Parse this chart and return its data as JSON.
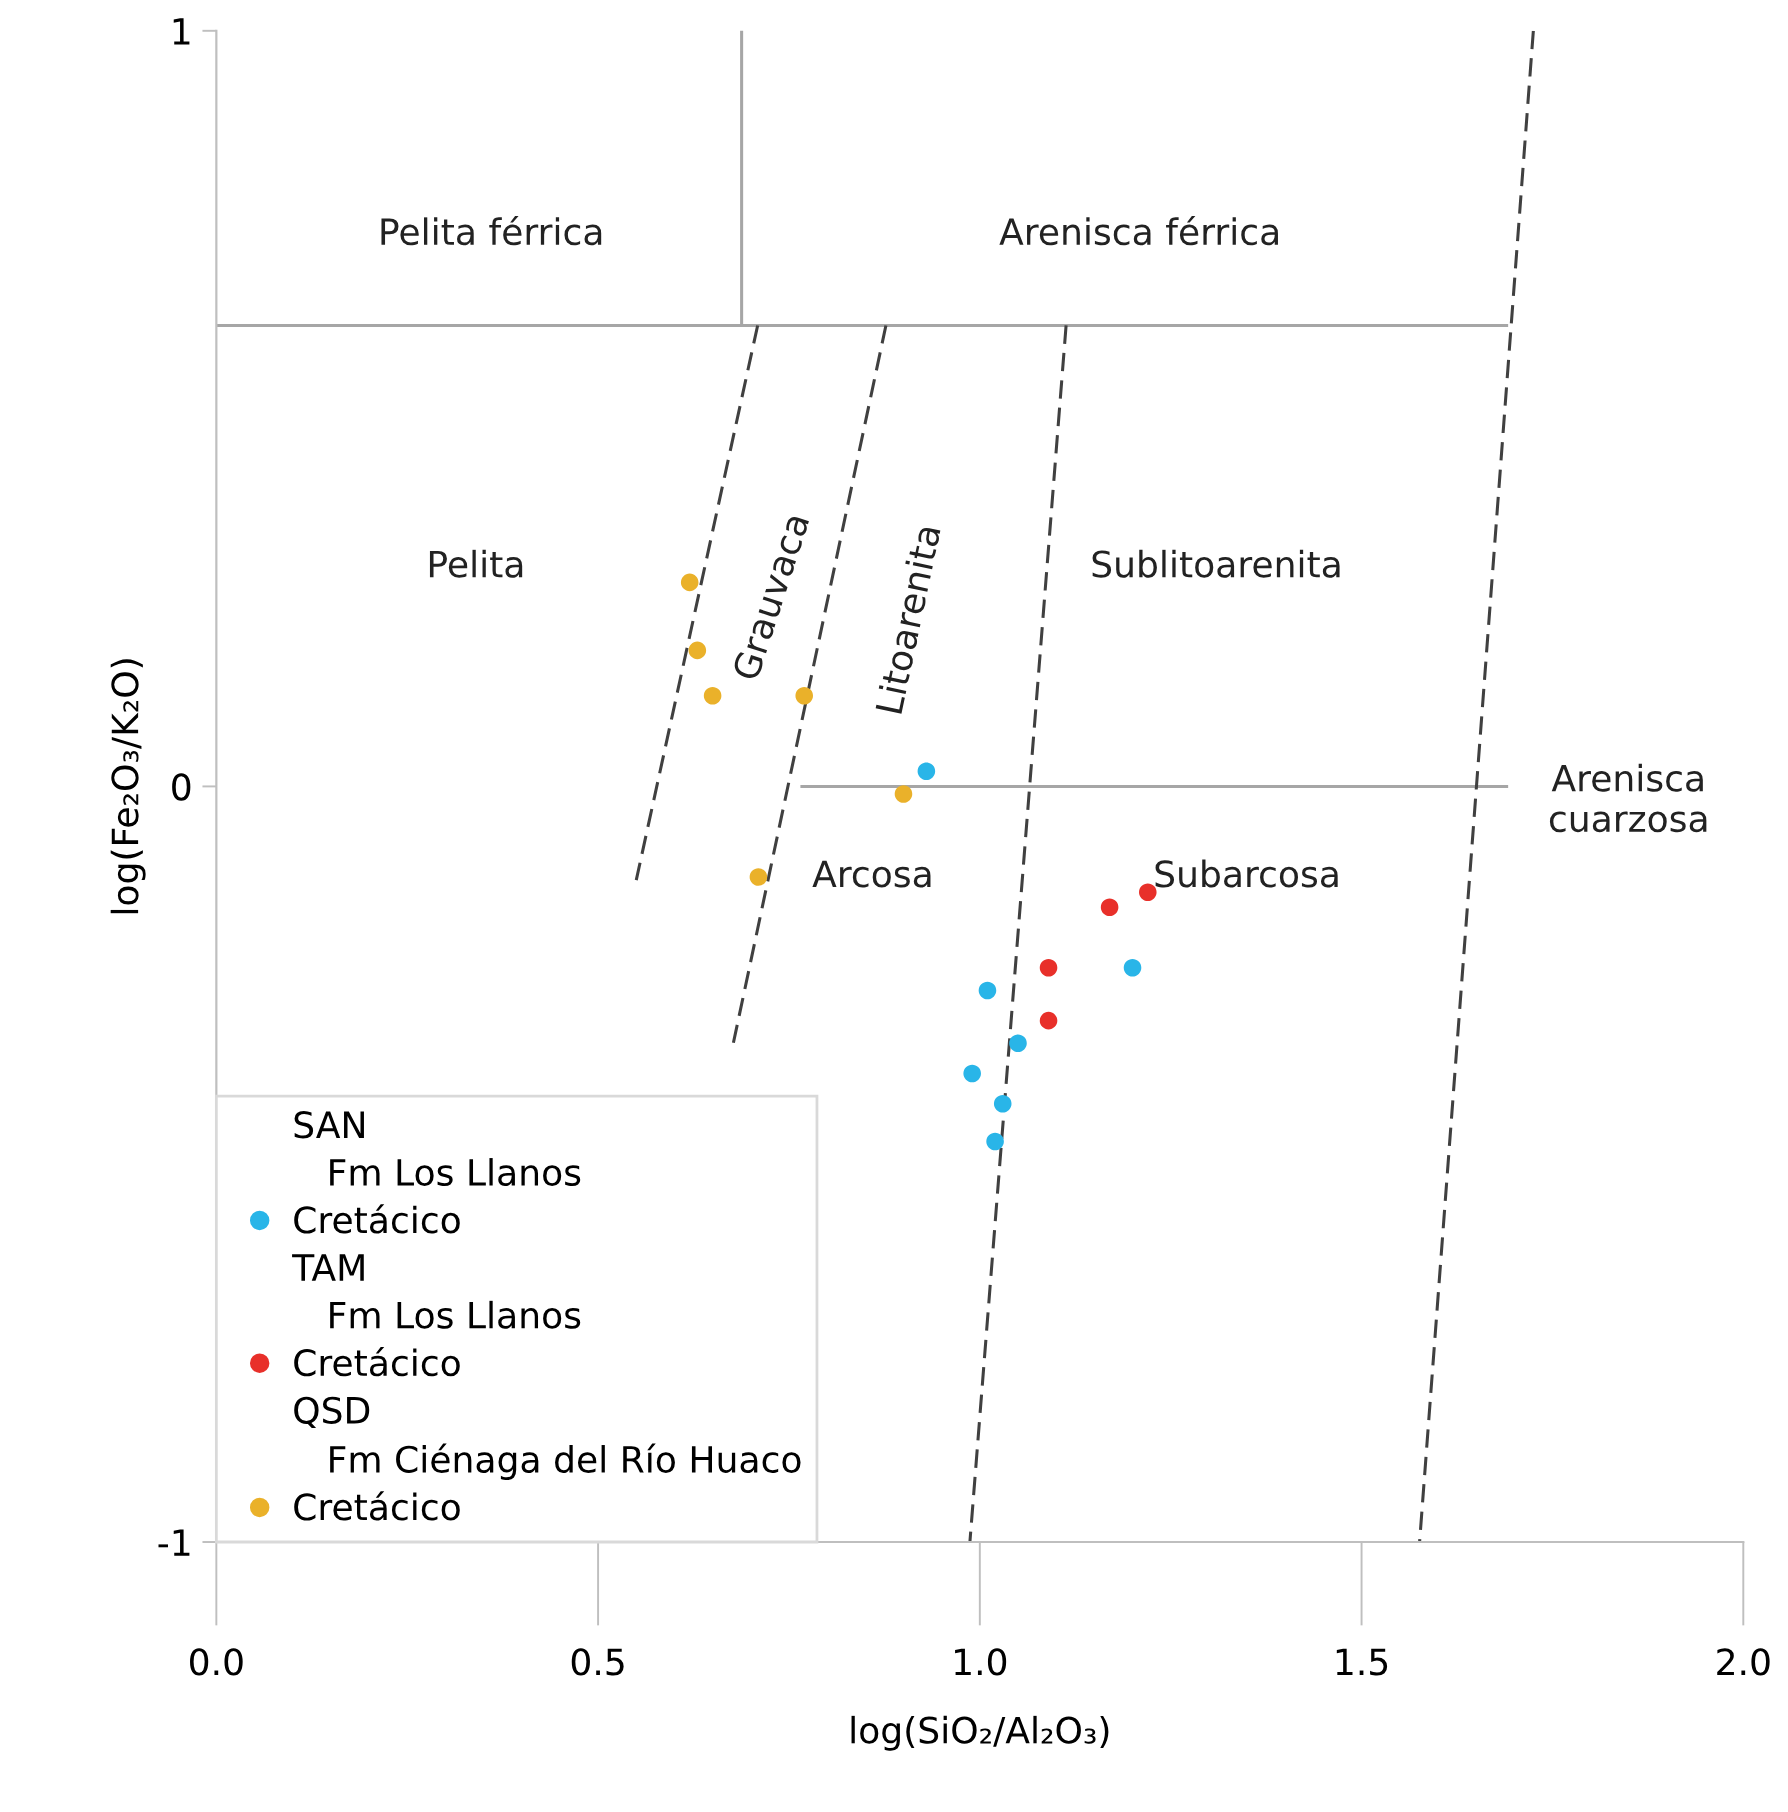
{
  "chart_data": {
    "type": "scatter",
    "xlabel": "log(SiO₂/Al₂O₃)",
    "ylabel": "log(Fe₂O₃/K₂O)",
    "xlim": [
      0,
      2
    ],
    "ylim": [
      -1,
      1
    ],
    "xticks": [
      {
        "value": 0,
        "label": "0.0"
      },
      {
        "value": 0.5,
        "label": "0.5"
      },
      {
        "value": 1,
        "label": "1.0"
      },
      {
        "value": 1.5,
        "label": "1.5"
      },
      {
        "value": 2,
        "label": "2.0"
      }
    ],
    "yticks": [
      -1,
      0,
      1
    ],
    "grid": false,
    "legend": "bottom left",
    "series": [
      {
        "type": "line",
        "color": "#a6a6a6",
        "line_style": "solid",
        "marker": "none",
        "x": [
          0,
          1.69
        ],
        "values": [
          0.61,
          0.61
        ]
      },
      {
        "type": "line",
        "color": "#a6a6a6",
        "line_style": "solid",
        "marker": "none",
        "x": [
          0.688,
          0.688
        ],
        "values": [
          1,
          0.61
        ]
      },
      {
        "type": "line",
        "color": "#a6a6a6",
        "line_style": "solid",
        "marker": "none",
        "x": [
          0.767,
          1.69
        ],
        "values": [
          0,
          0
        ]
      },
      {
        "type": "line",
        "color": "#404040",
        "line_style": "dashed",
        "marker": "none",
        "x": [
          0.709,
          0.55
        ],
        "values": [
          0.61,
          -0.124
        ]
      },
      {
        "type": "line",
        "color": "#404040",
        "line_style": "dashed",
        "marker": "none",
        "x": [
          0.877,
          0.675
        ],
        "values": [
          0.61,
          -0.35
        ]
      },
      {
        "type": "line",
        "color": "#404040",
        "line_style": "dashed",
        "marker": "none",
        "x": [
          1.113,
          0.987
        ],
        "values": [
          0.61,
          -1
        ]
      },
      {
        "type": "line",
        "color": "#404040",
        "line_style": "dashed",
        "marker": "none",
        "x": [
          1.725,
          1.576
        ],
        "values": [
          1,
          -1
        ]
      },
      {
        "name": "Cretácico",
        "marker": "circle",
        "color": "#29b5e8",
        "x": [
          0.93,
          1.01,
          1.05,
          0.99,
          1.03,
          1.02,
          1.2
        ],
        "values": [
          0.02,
          -0.27,
          -0.34,
          -0.38,
          -0.42,
          -0.47,
          -0.24
        ]
      },
      {
        "name": "Cretácico",
        "marker": "circle",
        "color": "#e8302a",
        "x": [
          1.09,
          1.09,
          1.17,
          1.22
        ],
        "values": [
          -0.24,
          -0.31,
          -0.16,
          -0.14
        ]
      },
      {
        "name": "Cretácico",
        "marker": "circle",
        "color": "#eab12a",
        "x": [
          0.62,
          0.63,
          0.65,
          0.77,
          0.71,
          0.9
        ],
        "values": [
          0.27,
          0.18,
          0.12,
          0.12,
          -0.12,
          -0.01
        ]
      }
    ],
    "annotations": [
      "Pelita férrica",
      "Arenisca férrica",
      "Pelita",
      "Grauvaca",
      "Litoarenita",
      "Sublitoarenita",
      "Arcosa",
      "Subarcosa",
      "Arenisca\ncuarzosa",
      "SAN",
      "Fm Los Llanos",
      "TAM",
      "Fm Los Llanos",
      "QSD",
      "Fm Ciénaga del Río Huaco"
    ]
  }
}
